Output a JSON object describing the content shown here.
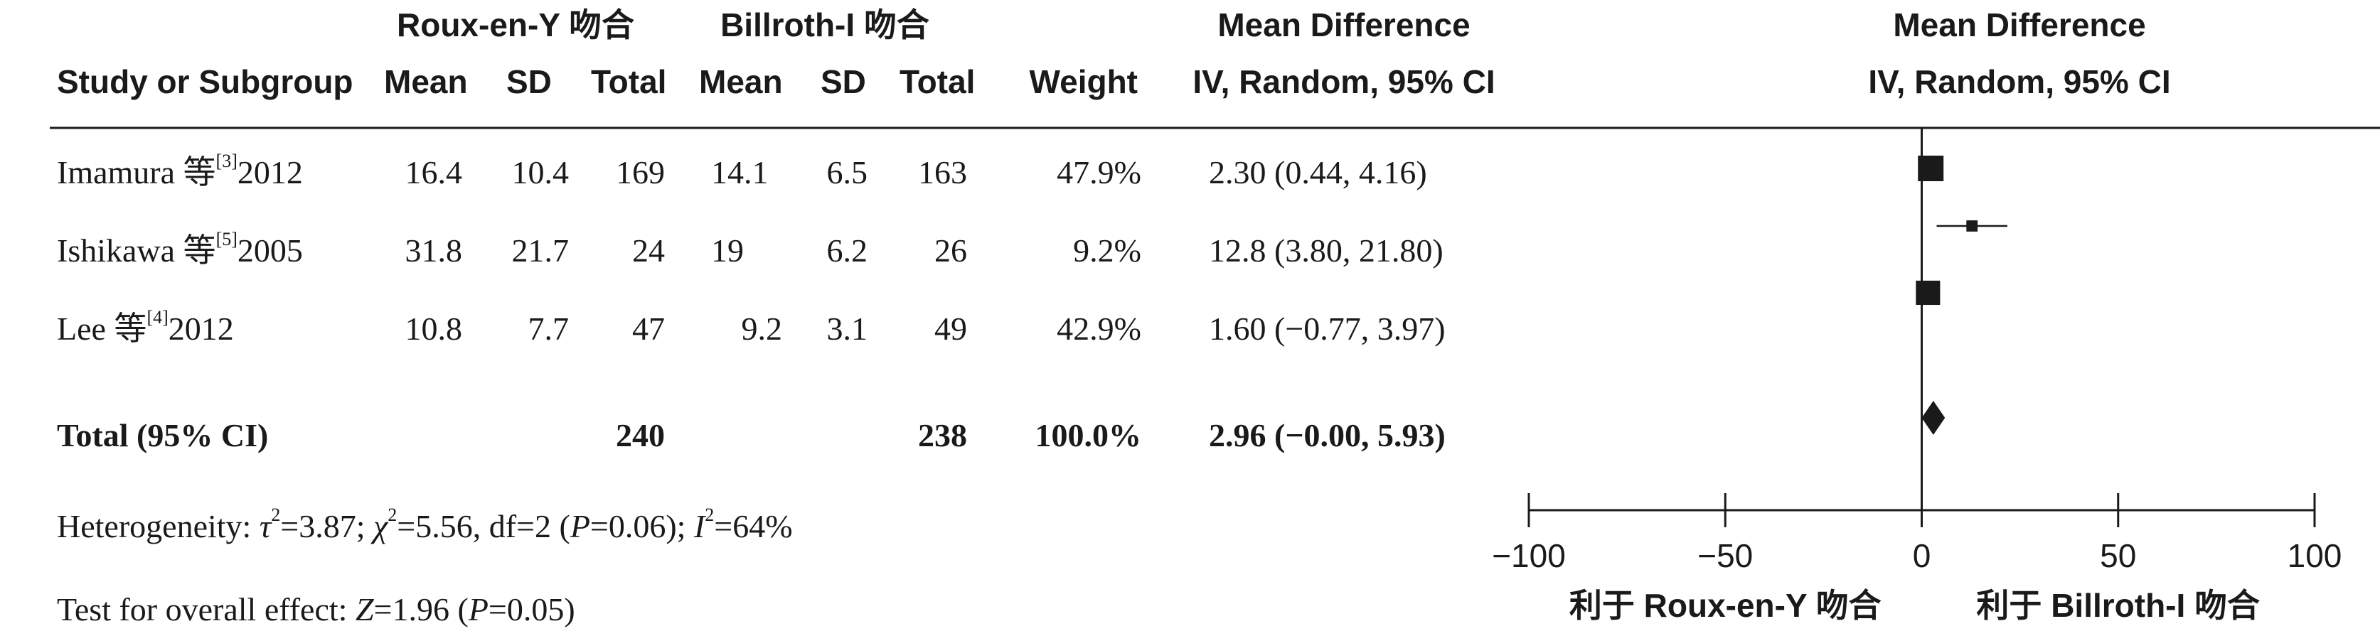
{
  "chart_data": {
    "type": "forest",
    "group_headers": {
      "experimental": "Roux-en-Y 吻合",
      "control": "Billroth-I 吻合",
      "effect_table": "Mean Difference",
      "effect_plot": "Mean Difference"
    },
    "column_headers": {
      "study": "Study or Subgroup",
      "exp_mean": "Mean",
      "exp_sd": "SD",
      "exp_total": "Total",
      "ctl_mean": "Mean",
      "ctl_sd": "SD",
      "ctl_total": "Total",
      "weight": "Weight",
      "effect_table": "IV, Random, 95% CI",
      "effect_plot": "IV, Random, 95% CI"
    },
    "studies": [
      {
        "name": "Imamura 等",
        "ref": "[3]",
        "year": "2012",
        "exp_mean": "16.4",
        "exp_sd": "10.4",
        "exp_total": "169",
        "ctl_mean": "14.1",
        "ctl_sd": "6.5",
        "ctl_total": "163",
        "weight": "47.9%",
        "ci_text": "2.30 (0.44, 4.16)",
        "md": 2.3,
        "lo": 0.44,
        "hi": 4.16,
        "weight_pct": 47.9
      },
      {
        "name": "Ishikawa 等",
        "ref": "[5]",
        "year": "2005",
        "exp_mean": "31.8",
        "exp_sd": "21.7",
        "exp_total": "24",
        "ctl_mean": "19",
        "ctl_sd": "6.2",
        "ctl_total": "26",
        "weight": "9.2%",
        "ci_text": "12.8 (3.80, 21.80)",
        "md": 12.8,
        "lo": 3.8,
        "hi": 21.8,
        "weight_pct": 9.2
      },
      {
        "name": "Lee 等",
        "ref": "[4]",
        "year": "2012",
        "exp_mean": "10.8",
        "exp_sd": "7.7",
        "exp_total": "47",
        "ctl_mean": "9.2",
        "ctl_sd": "3.1",
        "ctl_total": "49",
        "weight": "42.9%",
        "ci_text": "1.60 (−0.77, 3.97)",
        "md": 1.6,
        "lo": -0.77,
        "hi": 3.97,
        "weight_pct": 42.9
      }
    ],
    "total": {
      "label": "Total (95% CI)",
      "exp_total": "240",
      "ctl_total": "238",
      "weight": "100.0%",
      "ci_text": "2.96 (−0.00, 5.93)",
      "md": 2.96,
      "lo": -0.0,
      "hi": 5.93
    },
    "heterogeneity": {
      "label": "Heterogeneity: ",
      "tau2_sym": "τ",
      "tau2_val": "=3.87; ",
      "chi2_sym": "χ",
      "chi2_val": "=5.56, df=2 (",
      "p_sym": "P",
      "p_val": "=0.06); ",
      "i2_sym": "I",
      "i2_val": "=64%"
    },
    "overall_effect": {
      "label": "Test for overall effect: ",
      "z_sym": "Z",
      "z_val": "=1.96 (",
      "p_sym": "P",
      "p_val": "=0.05)"
    },
    "axis": {
      "xlim": [
        -100,
        100
      ],
      "ticks": [
        -100,
        -50,
        0,
        50,
        100
      ],
      "tick_labels": [
        "−100",
        "−50",
        "0",
        "50",
        "100"
      ],
      "favours_left": "利于 Roux-en-Y 吻合",
      "favours_right": "利于 Billroth-I 吻合"
    }
  }
}
